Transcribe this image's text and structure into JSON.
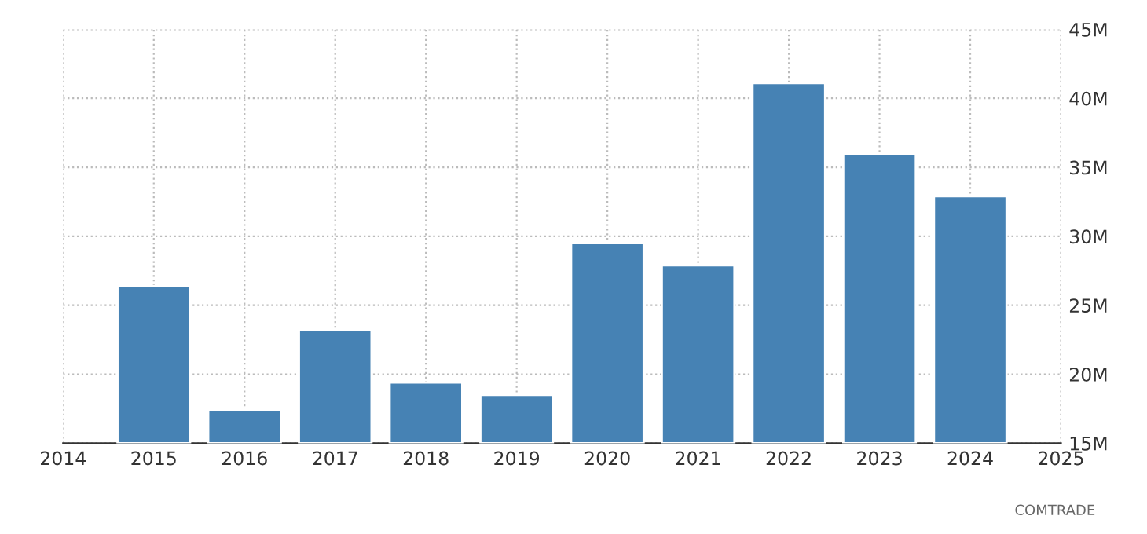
{
  "chart_data": {
    "type": "bar",
    "x": [
      2015,
      2016,
      2017,
      2018,
      2019,
      2020,
      2021,
      2022,
      2023,
      2024
    ],
    "values": [
      26.4,
      17.4,
      23.2,
      19.4,
      18.5,
      29.5,
      27.9,
      41.1,
      36.0,
      32.9
    ],
    "color": "#4682b4",
    "xlim": [
      2014,
      2025
    ],
    "xticks": [
      2014,
      2015,
      2016,
      2017,
      2018,
      2019,
      2020,
      2021,
      2022,
      2023,
      2024,
      2025
    ],
    "ylim": [
      15,
      45
    ],
    "yticks": [
      {
        "value": 15,
        "label": "15M"
      },
      {
        "value": 20,
        "label": "20M"
      },
      {
        "value": 25,
        "label": "25M"
      },
      {
        "value": 30,
        "label": "30M"
      },
      {
        "value": 35,
        "label": "35M"
      },
      {
        "value": 40,
        "label": "40M"
      },
      {
        "value": 45,
        "label": "45M"
      }
    ],
    "grid": true,
    "annotations": [
      "COMTRADE"
    ]
  }
}
